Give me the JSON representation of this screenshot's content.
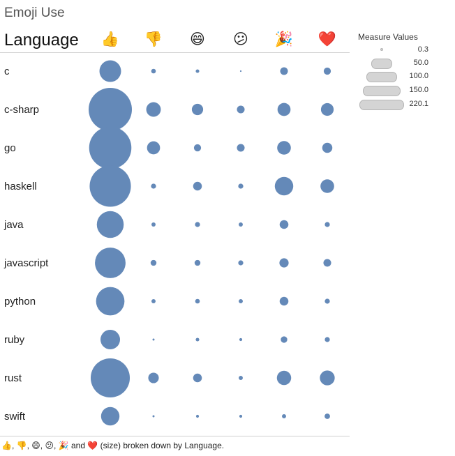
{
  "title": "Emoji Use",
  "row_header": "Language",
  "legend": {
    "title": "Measure Values",
    "values": [
      "0.3",
      "50.0",
      "100.0",
      "150.0",
      "220.1"
    ]
  },
  "caption": {
    "emojis": [
      "👍",
      "👎",
      "😄",
      "😕",
      "🎉",
      "❤️"
    ],
    "sep": ",",
    "and": "and",
    "rest": "(size) broken down by Language."
  },
  "colors": {
    "mark": "#6489b8",
    "legend_fill": "#d4d4d4",
    "rule": "#d0d0d0"
  },
  "chart_data": {
    "type": "scatter",
    "title": "Emoji Use",
    "xlabel": "",
    "ylabel": "Language",
    "columns": [
      "👍",
      "👎",
      "😄",
      "😕",
      "🎉",
      "❤️"
    ],
    "categories": [
      "c",
      "c-sharp",
      "go",
      "haskell",
      "java",
      "javascript",
      "python",
      "ruby",
      "rust",
      "swift"
    ],
    "size_range": [
      0.3,
      220.1
    ],
    "series": [
      {
        "name": "👍",
        "values": [
          55,
          220.1,
          210,
          200,
          85,
          110,
          95,
          45,
          180,
          40
        ]
      },
      {
        "name": "👎",
        "values": [
          2.5,
          25,
          20,
          3,
          2,
          4,
          2,
          0.5,
          13,
          0.5
        ]
      },
      {
        "name": "😄",
        "values": [
          1.5,
          15,
          6,
          9,
          3,
          4,
          2.5,
          1.5,
          9,
          1
        ]
      },
      {
        "name": "😕",
        "values": [
          0.3,
          7,
          7,
          3,
          2,
          3,
          2,
          1,
          2,
          1
        ]
      },
      {
        "name": "🎉",
        "values": [
          7,
          20,
          22,
          40,
          9,
          10,
          9,
          5,
          24,
          2
        ]
      },
      {
        "name": "❤️",
        "values": [
          6,
          19,
          12,
          22,
          3,
          7,
          3,
          3,
          26,
          3.5
        ]
      }
    ]
  }
}
